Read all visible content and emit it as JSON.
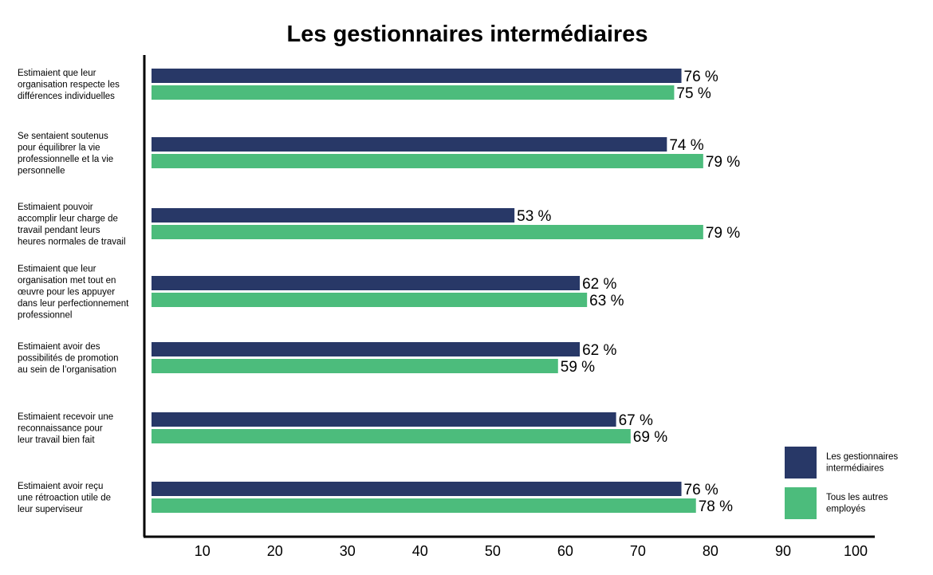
{
  "chart_data": {
    "type": "bar",
    "orientation": "horizontal",
    "title": "Les gestionnaires intermédiaires",
    "xlabel": "",
    "ylabel": "",
    "xlim": [
      3,
      100
    ],
    "xticks": [
      10,
      20,
      30,
      40,
      50,
      60,
      70,
      80,
      90,
      100
    ],
    "grid": false,
    "legend_position": "bottom-right",
    "value_suffix": " %",
    "categories": [
      [
        "Estimaient que leur",
        "organisation respecte les",
        "différences individuelles"
      ],
      [
        "Se sentaient soutenus",
        "pour équilibrer la vie",
        "professionnelle et la vie",
        "personnelle"
      ],
      [
        "Estimaient pouvoir",
        "accomplir leur charge de",
        "travail pendant leurs",
        "heures normales de travail"
      ],
      [
        "Estimaient que leur",
        "organisation met tout en",
        "œuvre pour les appuyer",
        "dans leur perfectionnement",
        "professionnel"
      ],
      [
        "Estimaient avoir des",
        "possibilités de promotion",
        "au sein de l’organisation"
      ],
      [
        "Estimaient recevoir une",
        "reconnaissance pour",
        "leur travail bien fait"
      ],
      [
        "Estimaient avoir reçu",
        "une rétroaction utile de",
        "leur superviseur"
      ]
    ],
    "series": [
      {
        "name": [
          "Les gestionnaires",
          "intermédiaires"
        ],
        "color": "#283867",
        "values": [
          76,
          74,
          53,
          62,
          62,
          67,
          76
        ]
      },
      {
        "name": [
          "Tous les autres",
          "employés"
        ],
        "color": "#4cbc7c",
        "values": [
          75,
          79,
          79,
          63,
          59,
          69,
          78
        ]
      }
    ]
  }
}
